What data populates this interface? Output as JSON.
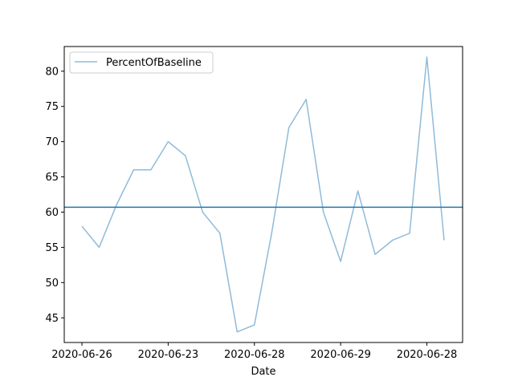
{
  "chart_data": {
    "type": "line",
    "title": "",
    "xlabel": "Date",
    "ylabel": "",
    "x_tick_labels": [
      "2020-06-26",
      "2020-06-23",
      "2020-06-28",
      "2020-06-29",
      "2020-06-28"
    ],
    "ylim": [
      41.5,
      83.5
    ],
    "yticks": [
      45,
      50,
      55,
      60,
      65,
      70,
      75,
      80
    ],
    "grid": false,
    "legend_position": "upper-left",
    "series": [
      {
        "name": "PercentOfBaseline",
        "color": "#1f77b4",
        "opacity": 0.5,
        "values": [
          58,
          55,
          61,
          66,
          66,
          70,
          68,
          60,
          57,
          43,
          44,
          57,
          72,
          76,
          60,
          53,
          63,
          54,
          56,
          57,
          82,
          56
        ]
      }
    ],
    "reference_line": {
      "y": 60.7,
      "color": "#1f77b4"
    }
  }
}
